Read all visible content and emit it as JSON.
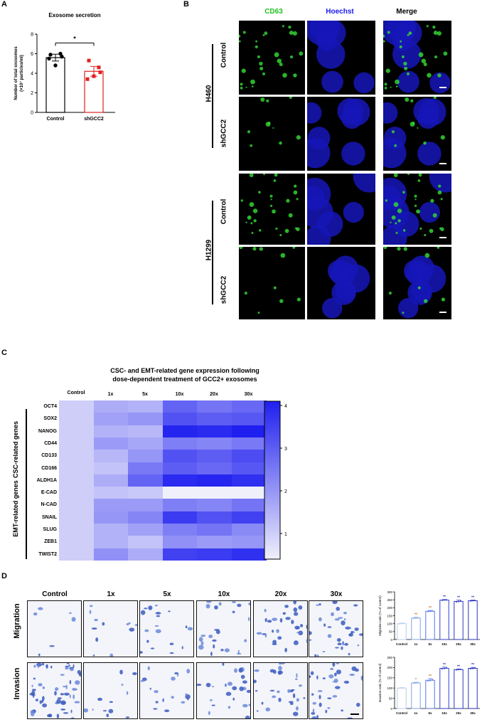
{
  "panel_labels": {
    "a": "A",
    "b": "B",
    "c": "C",
    "d": "D"
  },
  "panel_a": {
    "chart_data": {
      "type": "bar",
      "title": "Exosome secretion",
      "ylabel": "Number of total exosomes (×10⁷ particles/ml)",
      "ylabel_line1": "Number of total exosomes",
      "ylabel_line2": "(×10⁷ particles/ml)",
      "categories": [
        "Control",
        "shGCC2"
      ],
      "values": [
        5.6,
        4.2
      ],
      "errors": [
        0.35,
        0.5
      ],
      "points": [
        [
          5.9,
          6.0,
          5.5,
          4.8,
          5.7
        ],
        [
          5.3,
          4.6,
          3.4,
          3.7,
          4.1
        ]
      ],
      "colors": [
        "#000000",
        "#e02020"
      ],
      "ylim": [
        0,
        8
      ],
      "yticks": [
        "0",
        "2",
        "4",
        "6",
        "8"
      ],
      "significance": "*"
    }
  },
  "panel_b": {
    "channels": [
      "CD63",
      "Hoechst",
      "Merge"
    ],
    "channel_colors": [
      "#22c322",
      "#1a1aee",
      "#000000"
    ],
    "cell_lines": [
      "H460",
      "H1299"
    ],
    "conditions": [
      "Control",
      "shGCC2",
      "Control",
      "shGCC2"
    ]
  },
  "panel_c": {
    "chart_data": {
      "type": "heatmap",
      "title_line1": "CSC- and  EMT-related gene expression following",
      "title_line2": "dose-dependent treatment of  GCC2+ exosomes",
      "columns": [
        "Control",
        "1x",
        "5x",
        "10x",
        "20x",
        "30x"
      ],
      "rows": [
        "OCT4",
        "SOX2",
        "NANOG",
        "CD44",
        "CD133",
        "CD166",
        "ALDH1A",
        "E-CAD",
        "N-CAD",
        "SNAIL",
        "SLUG",
        "ZEB1",
        "TWIST2"
      ],
      "values": [
        [
          1,
          1.6,
          1.5,
          2.9,
          2.6,
          2.8
        ],
        [
          1,
          1.8,
          2.0,
          3.2,
          3.0,
          3.1
        ],
        [
          1,
          1.5,
          1.4,
          4.0,
          3.9,
          4.1
        ],
        [
          1,
          1.9,
          1.7,
          2.4,
          2.3,
          2.5
        ],
        [
          1,
          1.4,
          2.0,
          3.2,
          3.0,
          3.3
        ],
        [
          1,
          1.2,
          2.5,
          3.0,
          2.8,
          3.1
        ],
        [
          1,
          1.6,
          2.9,
          3.9,
          4.0,
          3.8
        ],
        [
          1,
          1.2,
          1.1,
          0.4,
          0.4,
          0.4
        ],
        [
          1,
          1.9,
          1.9,
          2.4,
          2.3,
          2.6
        ],
        [
          1,
          2.0,
          2.3,
          3.6,
          3.2,
          3.5
        ],
        [
          1,
          1.5,
          1.8,
          2.4,
          2.6,
          2.2
        ],
        [
          1,
          1.5,
          1.2,
          2.1,
          1.9,
          2.0
        ],
        [
          1,
          2.1,
          1.6,
          3.5,
          3.6,
          3.8
        ]
      ],
      "row_groups": [
        {
          "name": "CSC-related genes",
          "rows": [
            0,
            6
          ]
        },
        {
          "name": "EMT-related genes",
          "rows": [
            7,
            12
          ]
        }
      ],
      "colorbar": {
        "ticks": [
          "1",
          "2",
          "3",
          "4"
        ],
        "min": 0.4,
        "max": 4.1,
        "low_color": "#f0f0fb",
        "high_color": "#1f1ff0"
      }
    }
  },
  "panel_d": {
    "columns": [
      "Control",
      "1x",
      "5x",
      "10x",
      "20x",
      "30x"
    ],
    "rows": [
      "Migration",
      "Invasion"
    ],
    "charts": [
      {
        "type": "bar",
        "ylabel": "Migration ratio (% of control)",
        "categories": [
          "Control",
          "1x",
          "5x",
          "10x",
          "20x",
          "30x"
        ],
        "values": [
          100,
          135,
          178,
          248,
          240,
          244
        ],
        "errors": [
          4,
          5,
          5,
          4,
          8,
          4
        ],
        "ylim": [
          0,
          300
        ],
        "yticks": [
          "0",
          "50",
          "100",
          "150",
          "200",
          "250",
          "300"
        ],
        "significance": [
          "",
          "**",
          "**",
          "**",
          "**",
          "**"
        ],
        "colors": [
          "#b7cdf0",
          "#7fa3ea",
          "#5276e6",
          "#2d3fd0",
          "#2a35c5",
          "#2432bf"
        ]
      },
      {
        "type": "bar",
        "ylabel": "Invasion ratio (% of control)",
        "categories": [
          "Control",
          "1x",
          "5x",
          "10x",
          "20x",
          "30x"
        ],
        "values": [
          100,
          125,
          138,
          196,
          190,
          196
        ],
        "errors": [
          2,
          3,
          8,
          6,
          3,
          5
        ],
        "ylim": [
          0,
          250
        ],
        "yticks": [
          "0",
          "50",
          "100",
          "150",
          "200",
          "250"
        ],
        "significance": [
          "",
          "*",
          "**",
          "**",
          "**",
          "**"
        ],
        "colors": [
          "#b7cdf0",
          "#7fa3ea",
          "#5276e6",
          "#2d3fd0",
          "#2a35c5",
          "#2432bf"
        ]
      }
    ]
  }
}
